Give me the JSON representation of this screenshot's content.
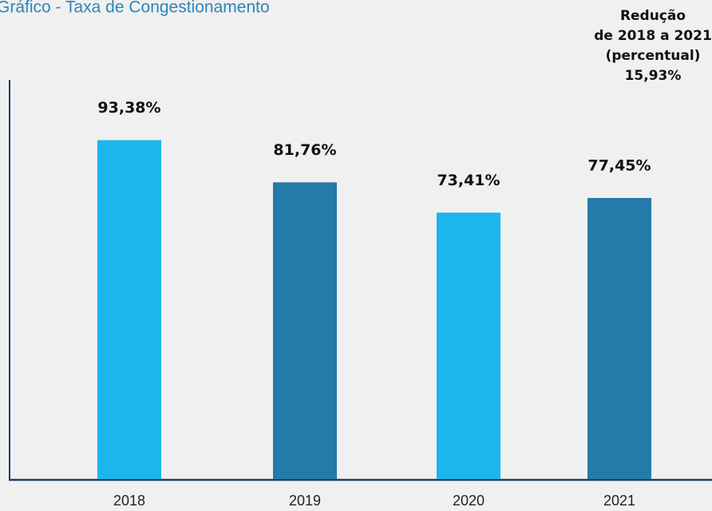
{
  "chart_data": {
    "type": "bar",
    "title": "Gráfico - Taxa de Congestionamento",
    "categories": [
      "2018",
      "2019",
      "2020",
      "2021"
    ],
    "values": [
      93.38,
      81.76,
      73.41,
      77.45
    ],
    "value_labels": [
      "93,38%",
      "81,76%",
      "73,41%",
      "77,45%"
    ],
    "colors": [
      "#1bb7ec",
      "#247aa9",
      "#1bb7ec",
      "#247aa9"
    ],
    "ylim": [
      0,
      110
    ],
    "annotation": [
      "Redução",
      "de 2018 a 2021",
      "(percentual)",
      "15,93%"
    ]
  }
}
